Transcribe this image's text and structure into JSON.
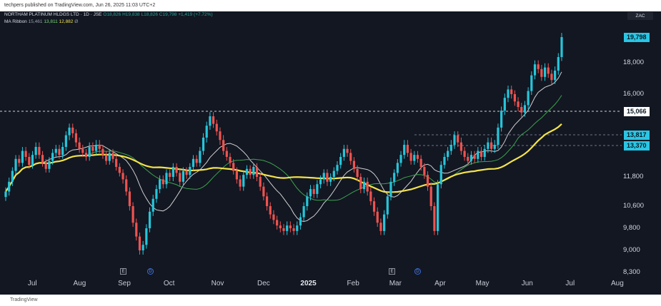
{
  "header": {
    "text": "techpers published on TradingView.com, Jun 26, 2025 11:03 UTC+2"
  },
  "footer": {
    "text": "TradingView"
  },
  "legend": {
    "symbol": "NORTHAM PLATINUM HLDGS LTD · 1D · JSE",
    "o": "O18,826",
    "h": "H19,838",
    "l": "L18,826",
    "c": "C19,798",
    "chg": "+1,419 (+7.72%)",
    "ma_label": "MA Ribbon",
    "ma1": "15,461",
    "ma2": "13,811",
    "ma3": "12,882",
    "ma_suffix": "Ø"
  },
  "currency": "ZAC",
  "colors": {
    "up": "#26c6da",
    "down": "#ef5350",
    "bg": "#121722",
    "ma_fast": "#d0d0d0",
    "ma_mid": "#3fa34d",
    "ma_slow": "#f5e34a",
    "tag_cyan": "#29c6e5",
    "tag_white": "#ffffff"
  },
  "chart_data": {
    "type": "candlestick",
    "title": "NORTHAM PLATINUM HLDGS LTD · 1D · JSE",
    "y_ticks": [
      "18,000",
      "16,000",
      "11,800",
      "10,600",
      "9,800",
      "9,000",
      "8,300"
    ],
    "y_tick_values": [
      18000,
      16000,
      11800,
      10600,
      9800,
      9000,
      8300
    ],
    "x_labels": [
      "Jul",
      "Aug",
      "Sep",
      "Oct",
      "Nov",
      "Dec",
      "2025",
      "Feb",
      "Mar",
      "Apr",
      "May",
      "Jun",
      "Jul",
      "Aug"
    ],
    "price_tags": [
      {
        "label": "19,798",
        "value": 19798,
        "style": "cyan"
      },
      {
        "label": "15,066",
        "value": 15066,
        "style": "white"
      },
      {
        "label": "13,817",
        "value": 13817,
        "style": "cyan"
      },
      {
        "label": "13,370",
        "value": 13370,
        "style": "cyan"
      }
    ],
    "closes": [
      11200,
      11600,
      12100,
      12700,
      12500,
      13100,
      12800,
      12400,
      12900,
      13300,
      12900,
      12500,
      12200,
      12600,
      13000,
      13200,
      12900,
      13300,
      13800,
      14200,
      13900,
      13500,
      13200,
      13000,
      12800,
      13300,
      13100,
      13400,
      13200,
      12900,
      12600,
      13000,
      12700,
      12300,
      12000,
      11700,
      11200,
      10600,
      10000,
      9500,
      9000,
      9200,
      9800,
      10400,
      10900,
      11300,
      11700,
      11500,
      12000,
      11800,
      12300,
      12000,
      11600,
      12100,
      11900,
      12300,
      12700,
      12500,
      13100,
      13700,
      14300,
      14800,
      14400,
      14000,
      13600,
      13100,
      12800,
      12500,
      12100,
      11700,
      11400,
      11900,
      12200,
      11900,
      12300,
      11800,
      11400,
      11000,
      10600,
      10300,
      10100,
      9900,
      9800,
      9700,
      9900,
      9800,
      9700,
      9900,
      10200,
      10600,
      11000,
      11300,
      11100,
      11500,
      11700,
      12000,
      11600,
      11800,
      12100,
      12400,
      12800,
      13200,
      13000,
      12600,
      12200,
      11800,
      11300,
      11600,
      11200,
      10800,
      10400,
      10000,
      9700,
      10300,
      11000,
      11600,
      12000,
      12500,
      12900,
      13400,
      13000,
      12600,
      12900,
      12700,
      12300,
      11900,
      11400,
      10600,
      9700,
      11500,
      12400,
      12800,
      13100,
      13400,
      13800,
      13500,
      13100,
      12800,
      12600,
      12900,
      12700,
      13100,
      12800,
      13200,
      13500,
      13200,
      13400,
      14200,
      15100,
      15800,
      16300,
      16000,
      15600,
      15300,
      15000,
      15400,
      16200,
      17200,
      17900,
      17600,
      17100,
      17700,
      17300,
      16900,
      17500,
      18400,
      19798
    ]
  }
}
